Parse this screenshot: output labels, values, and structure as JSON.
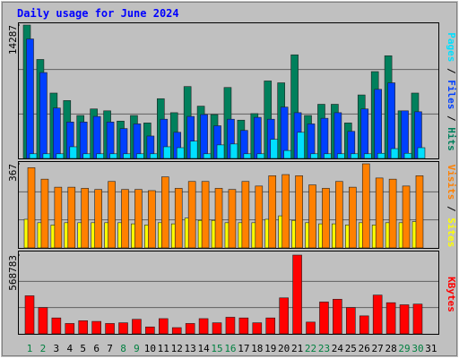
{
  "chart_data": [
    {
      "type": "bar",
      "title": "Daily usage for June 2024",
      "series": [
        {
          "name": "Hits",
          "color": "#00805c",
          "values": [
            14287,
            10600,
            7000,
            6200,
            4600,
            5300,
            5100,
            4000,
            4600,
            3800,
            6400,
            4900,
            7700,
            5600,
            4700,
            7600,
            4100,
            4800,
            8300,
            8100,
            11100,
            4600,
            5800,
            5800,
            3800,
            6800,
            9300,
            11000,
            5100,
            7000,
            0
          ]
        },
        {
          "name": "Files",
          "color": "#0040ff",
          "values": [
            12800,
            9200,
            5400,
            3900,
            3900,
            4500,
            3900,
            3200,
            3700,
            2400,
            4200,
            2800,
            4500,
            4700,
            3500,
            4200,
            3000,
            4400,
            4200,
            5500,
            4900,
            3700,
            4300,
            4900,
            2900,
            5300,
            7400,
            8100,
            5100,
            5000,
            0
          ]
        },
        {
          "name": "Pages",
          "color": "#00e0ff",
          "values": [
            500,
            500,
            500,
            1250,
            500,
            500,
            500,
            500,
            500,
            500,
            1250,
            1150,
            1850,
            500,
            1450,
            1550,
            500,
            500,
            2050,
            850,
            2800,
            500,
            500,
            500,
            500,
            500,
            550,
            1050,
            550,
            1150,
            0
          ]
        }
      ],
      "ylim": [
        0,
        14287
      ],
      "yticks": [
        14287
      ],
      "grid": true
    },
    {
      "type": "bar",
      "series": [
        {
          "name": "Sites",
          "color": "#ffff00",
          "values": [
            125,
            110,
            100,
            110,
            110,
            110,
            110,
            110,
            105,
            100,
            110,
            105,
            130,
            120,
            120,
            110,
            110,
            110,
            125,
            140,
            120,
            110,
            105,
            105,
            100,
            110,
            100,
            110,
            110,
            115,
            0
          ]
        },
        {
          "name": "Visits",
          "color": "#ff8000",
          "values": [
            350,
            300,
            265,
            265,
            260,
            255,
            290,
            255,
            255,
            250,
            310,
            260,
            290,
            290,
            260,
            255,
            290,
            270,
            315,
            320,
            315,
            275,
            260,
            290,
            265,
            367,
            305,
            300,
            270,
            315,
            0
          ]
        }
      ],
      "ylim": [
        0,
        367
      ],
      "yticks": [
        367
      ],
      "grid": true
    },
    {
      "type": "bar",
      "categories": [
        "1",
        "2",
        "3",
        "4",
        "5",
        "6",
        "7",
        "8",
        "9",
        "10",
        "11",
        "12",
        "13",
        "14",
        "15",
        "16",
        "17",
        "18",
        "19",
        "20",
        "21",
        "22",
        "23",
        "24",
        "25",
        "26",
        "27",
        "28",
        "29",
        "30",
        "31"
      ],
      "category_colors": [
        "#008040",
        "#008040",
        "#000000",
        "#000000",
        "#000000",
        "#000000",
        "#000000",
        "#008040",
        "#008040",
        "#000000",
        "#000000",
        "#000000",
        "#000000",
        "#000000",
        "#008040",
        "#008040",
        "#000000",
        "#000000",
        "#000000",
        "#000000",
        "#000000",
        "#008040",
        "#008040",
        "#000000",
        "#000000",
        "#000000",
        "#000000",
        "#000000",
        "#008040",
        "#008040",
        "#000000"
      ],
      "series": [
        {
          "name": "KBytes",
          "color": "#ff0000",
          "values": [
            275000,
            190000,
            115000,
            75000,
            95000,
            90000,
            75000,
            80000,
            105000,
            50000,
            110000,
            45000,
            75000,
            110000,
            80000,
            120000,
            115000,
            80000,
            115000,
            260000,
            568783,
            85000,
            230000,
            250000,
            190000,
            130000,
            280000,
            225000,
            210000,
            215000,
            0
          ]
        }
      ],
      "ylim": [
        0,
        568783
      ],
      "yticks": [
        568783
      ],
      "grid": true
    }
  ]
}
